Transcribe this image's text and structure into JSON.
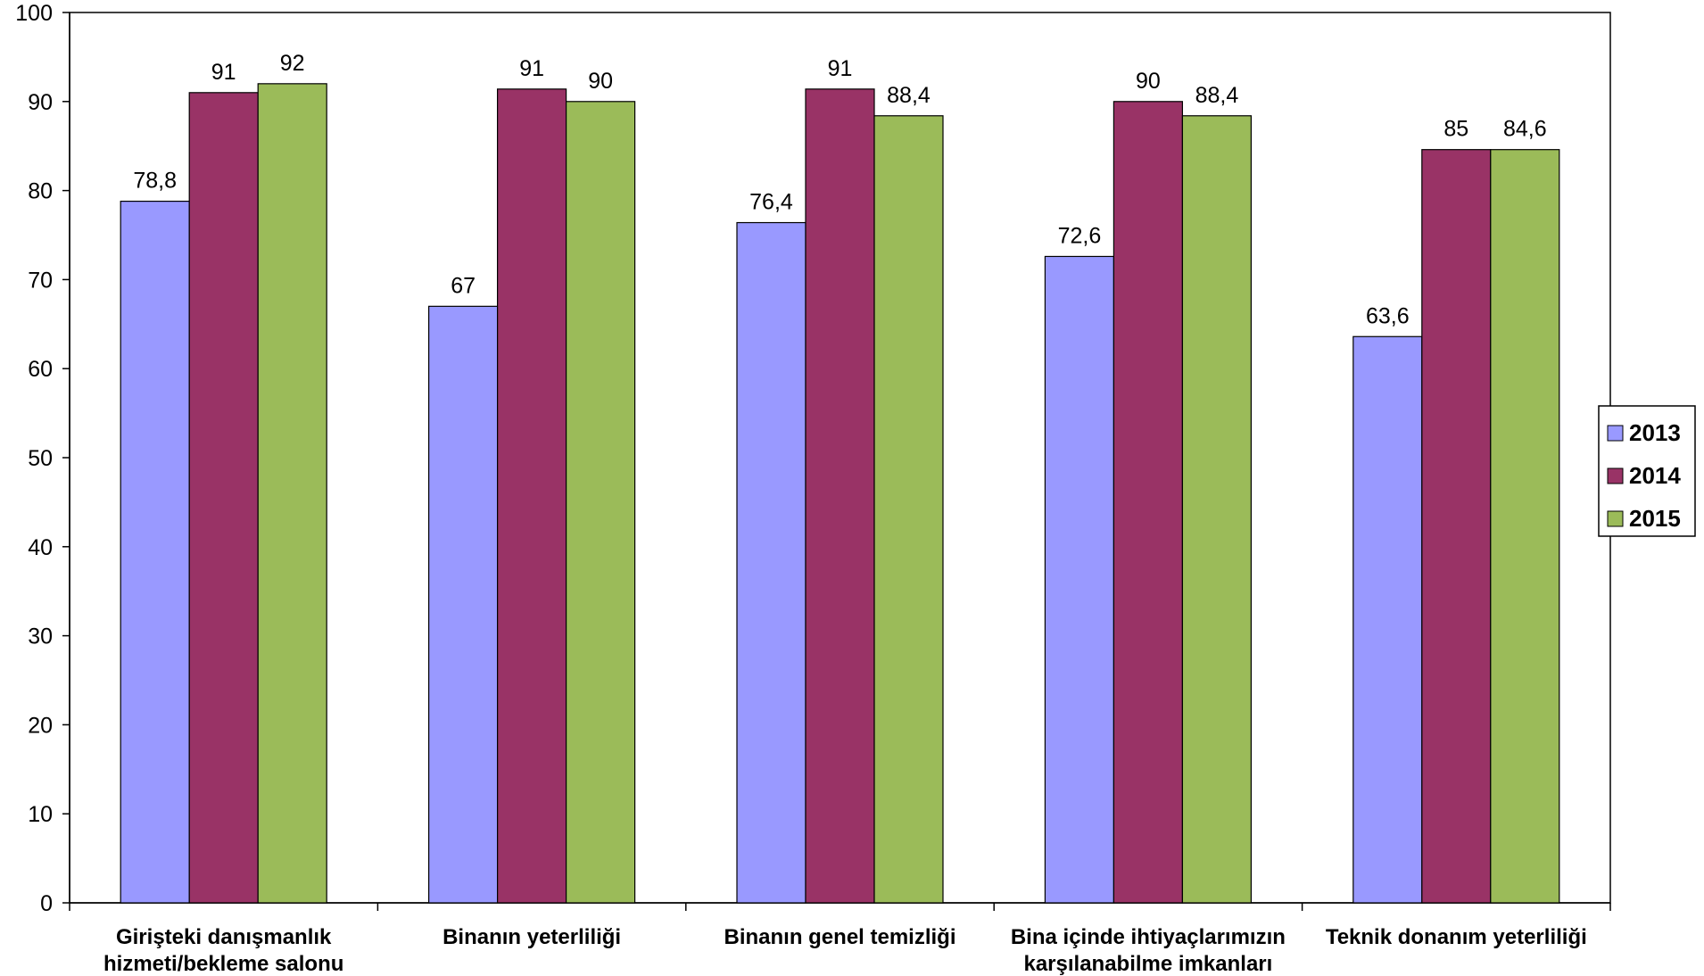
{
  "chart_data": {
    "type": "bar",
    "categories": [
      [
        "Girişteki danışmanlık",
        "hizmeti/bekleme salonu"
      ],
      [
        "Binanın yeterliliği"
      ],
      [
        "Binanın genel temizliği"
      ],
      [
        "Bina içinde ihtiyaçlarımızın",
        "karşılanabilme imkanları"
      ],
      [
        "Teknik donanım  yeterliliği"
      ]
    ],
    "series": [
      {
        "name": "2013",
        "color": "#9999ff",
        "values": [
          78.8,
          67,
          76.4,
          72.6,
          63.6
        ],
        "labels": [
          "78,8",
          "67",
          "76,4",
          "72,6",
          "63,6"
        ]
      },
      {
        "name": "2014",
        "color": "#993366",
        "values": [
          91,
          91.4,
          91.4,
          90,
          84.6
        ],
        "labels": [
          "91",
          "91",
          "91",
          "90",
          "85"
        ]
      },
      {
        "name": "2015",
        "color": "#9bbb59",
        "values": [
          92,
          90,
          88.4,
          88.4,
          84.6
        ],
        "labels": [
          "92",
          "90",
          "88,4",
          "88,4",
          "84,6"
        ]
      }
    ],
    "ylim": [
      0,
      100
    ],
    "yticks": [
      "0",
      "10",
      "20",
      "30",
      "40",
      "50",
      "60",
      "70",
      "80",
      "90",
      "100"
    ],
    "grid": false,
    "legend_position": "right"
  }
}
